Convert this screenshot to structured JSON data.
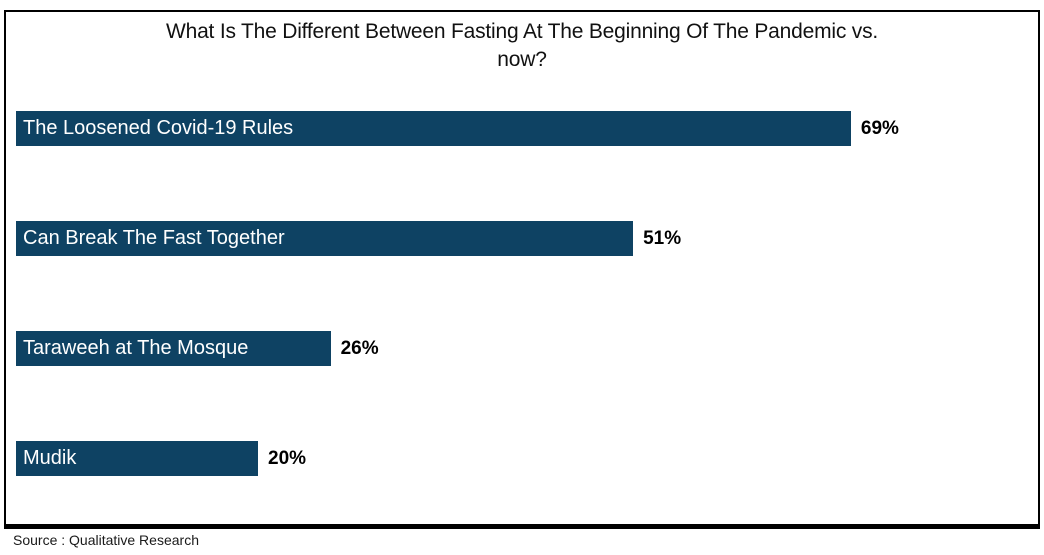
{
  "header": {
    "title_line1": "What Is The Different Between Fasting At The Beginning Of The Pandemic vs.",
    "title_line2": "now?"
  },
  "footer": {
    "source": "Source : Qualitative Research"
  },
  "colors": {
    "bar_fill": "#0e4263",
    "bar_label_text": "#ffffff",
    "value_label_text": "#000000",
    "frame_border": "#000000"
  },
  "chart_data": {
    "type": "bar",
    "orientation": "horizontal",
    "title": "What Is The Different Between Fasting At The Beginning Of The Pandemic vs. now?",
    "categories": [
      "The Loosened Covid-19 Rules",
      "Can Break The Fast Together",
      "Taraweeh at The Mosque",
      "Mudik"
    ],
    "values": [
      69,
      51,
      26,
      20
    ],
    "value_labels": [
      "69%",
      "51%",
      "26%",
      "20%"
    ],
    "xlabel": "",
    "ylabel": "",
    "xlim": [
      0,
      100
    ],
    "grid": false,
    "legend": false,
    "source": "Source : Qualitative Research"
  }
}
